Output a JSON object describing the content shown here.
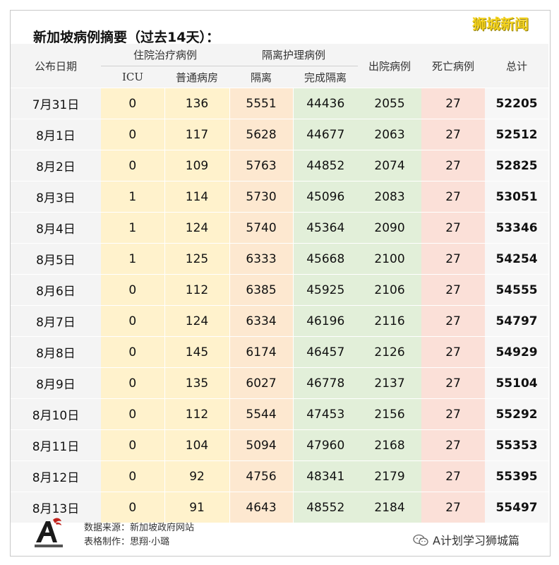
{
  "title": "新加坡病例摘要（过去14天）：",
  "brand": "狮城新闻",
  "headers": {
    "date": "公布日期",
    "hospital": "住院治疗病例",
    "icu": "ICU",
    "ward": "普通病房",
    "isolation_group": "隔离护理病例",
    "isolation": "隔离",
    "completed": "完成隔离",
    "discharged": "出院病例",
    "deaths": "死亡病例",
    "total": "总计"
  },
  "rows": [
    {
      "date": "7月31日",
      "icu": "0",
      "ward": "136",
      "isolation": "5551",
      "completed": "44436",
      "discharged": "2055",
      "deaths": "27",
      "total": "52205"
    },
    {
      "date": "8月1日",
      "icu": "0",
      "ward": "117",
      "isolation": "5628",
      "completed": "44677",
      "discharged": "2063",
      "deaths": "27",
      "total": "52512"
    },
    {
      "date": "8月2日",
      "icu": "0",
      "ward": "109",
      "isolation": "5763",
      "completed": "44852",
      "discharged": "2074",
      "deaths": "27",
      "total": "52825"
    },
    {
      "date": "8月3日",
      "icu": "1",
      "ward": "114",
      "isolation": "5730",
      "completed": "45096",
      "discharged": "2083",
      "deaths": "27",
      "total": "53051"
    },
    {
      "date": "8月4日",
      "icu": "1",
      "ward": "124",
      "isolation": "5740",
      "completed": "45364",
      "discharged": "2090",
      "deaths": "27",
      "total": "53346"
    },
    {
      "date": "8月5日",
      "icu": "1",
      "ward": "125",
      "isolation": "6333",
      "completed": "45668",
      "discharged": "2100",
      "deaths": "27",
      "total": "54254"
    },
    {
      "date": "8月6日",
      "icu": "0",
      "ward": "112",
      "isolation": "6385",
      "completed": "45925",
      "discharged": "2106",
      "deaths": "27",
      "total": "54555"
    },
    {
      "date": "8月7日",
      "icu": "0",
      "ward": "124",
      "isolation": "6334",
      "completed": "46196",
      "discharged": "2116",
      "deaths": "27",
      "total": "54797"
    },
    {
      "date": "8月8日",
      "icu": "0",
      "ward": "145",
      "isolation": "6174",
      "completed": "46457",
      "discharged": "2126",
      "deaths": "27",
      "total": "54929"
    },
    {
      "date": "8月9日",
      "icu": "0",
      "ward": "135",
      "isolation": "6027",
      "completed": "46778",
      "discharged": "2137",
      "deaths": "27",
      "total": "55104"
    },
    {
      "date": "8月10日",
      "icu": "0",
      "ward": "112",
      "isolation": "5544",
      "completed": "47453",
      "discharged": "2156",
      "deaths": "27",
      "total": "55292"
    },
    {
      "date": "8月11日",
      "icu": "0",
      "ward": "104",
      "isolation": "5094",
      "completed": "47960",
      "discharged": "2168",
      "deaths": "27",
      "total": "55353"
    },
    {
      "date": "8月12日",
      "icu": "0",
      "ward": "92",
      "isolation": "4756",
      "completed": "48341",
      "discharged": "2179",
      "deaths": "27",
      "total": "55395"
    },
    {
      "date": "8月13日",
      "icu": "0",
      "ward": "91",
      "isolation": "4643",
      "completed": "48552",
      "discharged": "2184",
      "deaths": "27",
      "total": "55497"
    }
  ],
  "footer": {
    "source": "数据来源：新加坡政府网站",
    "made_by": "表格制作：思翔·小璐",
    "wechat": "A计划学习狮城篇",
    "logo_icon": "letter-a-logo-icon",
    "wechat_icon": "wechat-icon",
    "colors": {
      "brand": "#f4d21c",
      "logo_red": "#c0201a"
    }
  }
}
